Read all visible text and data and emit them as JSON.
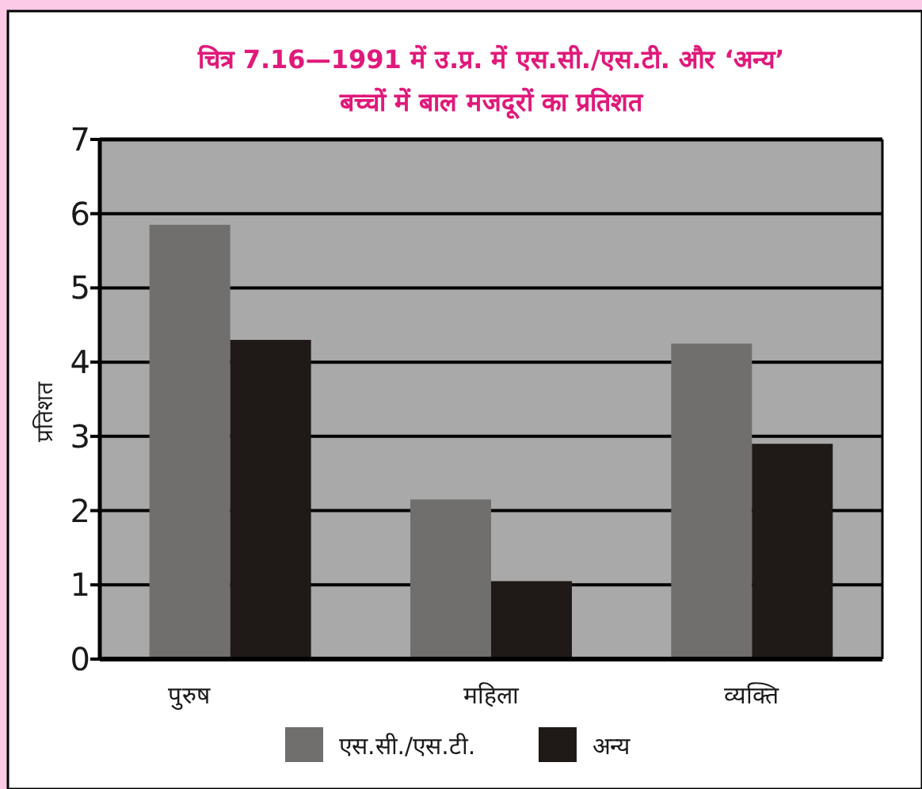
{
  "chart_data": {
    "type": "bar",
    "title": "चित्र 7.16—1991 में उ.प्र. में एस.सी./एस.टी. और ‘अन्य’",
    "subtitle": "बच्चों में बाल मजदूरों का प्रतिशत",
    "ylabel": "प्रतिशत",
    "categories": [
      "पुरुष",
      "महिला",
      "व्यक्ति"
    ],
    "series": [
      {
        "name": "एस.सी./एस.टी.",
        "color": "#706f6d",
        "values": [
          5.85,
          2.15,
          4.25
        ]
      },
      {
        "name": "अन्य",
        "color": "#1f1a17",
        "values": [
          4.3,
          1.05,
          2.9
        ]
      }
    ],
    "ylim": [
      0,
      7
    ],
    "yticks": [
      0,
      1,
      2,
      3,
      4,
      5,
      6,
      7
    ],
    "grid": "y",
    "legend": "bottom"
  }
}
